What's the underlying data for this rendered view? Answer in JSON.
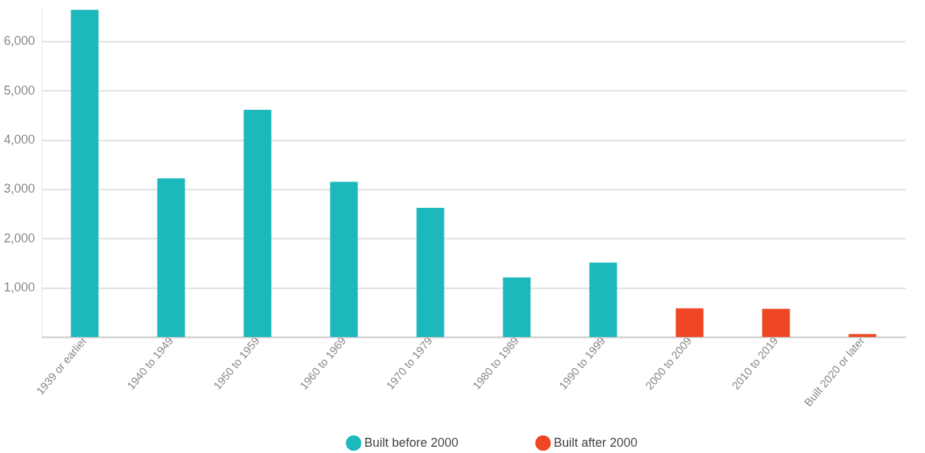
{
  "chart_data": {
    "type": "bar",
    "categories": [
      "1939 or earlier",
      "1940 to 1949",
      "1950 to 1959",
      "1960 to 1969",
      "1970 to 1979",
      "1980 to 1989",
      "1990 to 1999",
      "2000 to 2009",
      "2010 to 2019",
      "Built 2020 or later"
    ],
    "series": [
      {
        "name": "Built before 2000",
        "color": "#1cb8bc",
        "values": [
          6640,
          3220,
          4610,
          3150,
          2620,
          1210,
          1510,
          null,
          null,
          null
        ]
      },
      {
        "name": "Built after 2000",
        "color": "#ef4723",
        "values": [
          null,
          null,
          null,
          null,
          null,
          null,
          null,
          580,
          570,
          60
        ]
      }
    ],
    "ylim": [
      0,
      6700
    ],
    "yticks": [
      {
        "value": 0,
        "label": null
      },
      {
        "value": 1000,
        "label": "1,000"
      },
      {
        "value": 2000,
        "label": "2,000"
      },
      {
        "value": 3000,
        "label": "3,000"
      },
      {
        "value": 4000,
        "label": "4,000"
      },
      {
        "value": 5000,
        "label": "5,000"
      },
      {
        "value": 6000,
        "label": "6,000"
      }
    ],
    "grid": "y",
    "legend": "bottom"
  }
}
